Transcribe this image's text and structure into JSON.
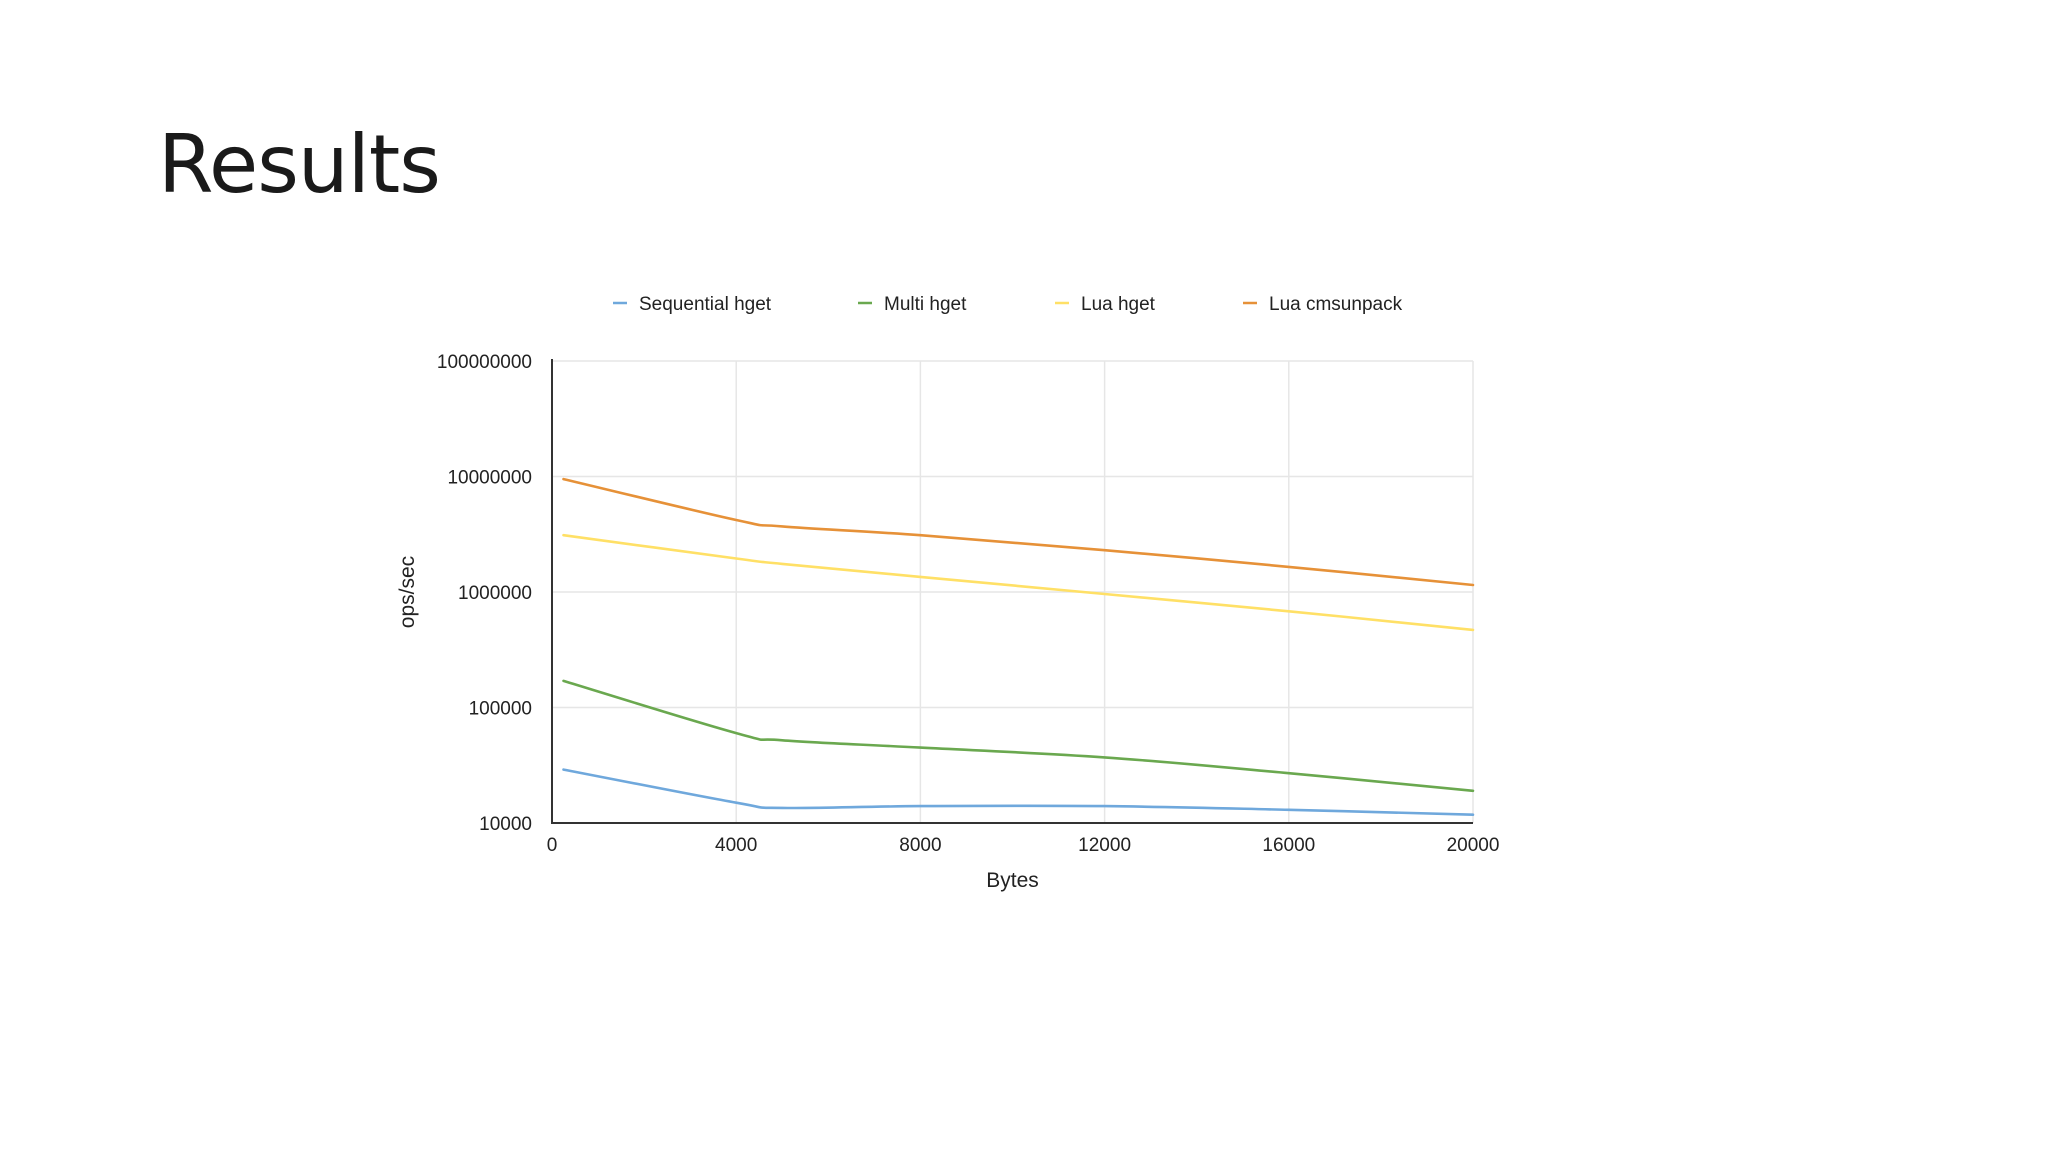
{
  "slide": {
    "title": "Results"
  },
  "chart_data": {
    "type": "line",
    "title": "",
    "xlabel": "Bytes",
    "ylabel": "ops/sec",
    "x_scale": "linear",
    "y_scale": "log",
    "xlim": [
      0,
      20000
    ],
    "ylim": [
      10000,
      100000000
    ],
    "x_ticks": [
      "0",
      "4000",
      "8000",
      "12000",
      "16000",
      "20000"
    ],
    "y_ticks": [
      "100000000",
      "10000000",
      "1000000",
      "100000",
      "10000"
    ],
    "grid": true,
    "legend_position": "top",
    "series": [
      {
        "name": "Sequential hget",
        "color": "#6fa8dc",
        "x": [
          250,
          4000,
          5000,
          8000,
          12000,
          16000,
          20000
        ],
        "values": [
          29000,
          15000,
          13500,
          14000,
          14000,
          13000,
          11800
        ]
      },
      {
        "name": "Multi hget",
        "color": "#6aa84f",
        "x": [
          250,
          4000,
          5000,
          8000,
          12000,
          16000,
          20000
        ],
        "values": [
          170000,
          60000,
          52000,
          45000,
          37000,
          27000,
          19000
        ]
      },
      {
        "name": "Lua hget",
        "color": "#ffe066",
        "x": [
          250,
          4000,
          5000,
          8000,
          12000,
          16000,
          20000
        ],
        "values": [
          3100000,
          1950000,
          1750000,
          1350000,
          960000,
          680000,
          470000
        ]
      },
      {
        "name": "Lua cmsunpack",
        "color": "#e69138",
        "x": [
          250,
          4000,
          5000,
          8000,
          12000,
          16000,
          20000
        ],
        "values": [
          9500000,
          4200000,
          3700000,
          3100000,
          2300000,
          1650000,
          1150000
        ]
      }
    ]
  }
}
